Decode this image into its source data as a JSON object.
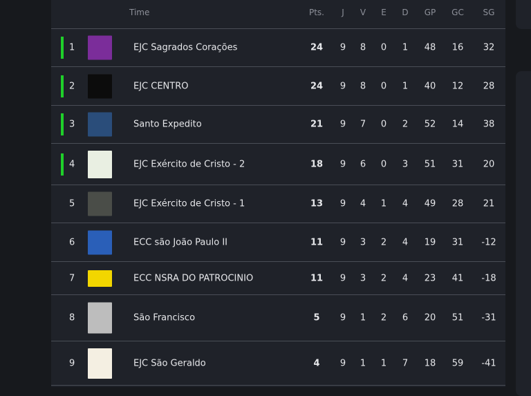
{
  "header": {
    "team": "Time",
    "cols": [
      "Pts.",
      "J",
      "V",
      "E",
      "D",
      "GP",
      "GC",
      "SG"
    ]
  },
  "colors": {
    "qualify": "#1fd02a"
  },
  "rows": [
    {
      "rank": "1",
      "name": "EJC Sagrados Corações",
      "pts": "24",
      "j": "9",
      "v": "8",
      "e": "0",
      "d": "1",
      "gp": "48",
      "gc": "16",
      "sg": "32",
      "q": true,
      "logo": "#7b2d9a"
    },
    {
      "rank": "2",
      "name": "EJC CENTRO",
      "pts": "24",
      "j": "9",
      "v": "8",
      "e": "0",
      "d": "1",
      "gp": "40",
      "gc": "12",
      "sg": "28",
      "q": true,
      "logo": "#0c0c0c"
    },
    {
      "rank": "3",
      "name": "Santo Expedito",
      "pts": "21",
      "j": "9",
      "v": "7",
      "e": "0",
      "d": "2",
      "gp": "52",
      "gc": "14",
      "sg": "38",
      "q": true,
      "logo": "#2a4d7a"
    },
    {
      "rank": "4",
      "name": "EJC Exército de Cristo - 2",
      "pts": "18",
      "j": "9",
      "v": "6",
      "e": "0",
      "d": "3",
      "gp": "51",
      "gc": "31",
      "sg": "20",
      "q": true,
      "logo": "#e9efe2"
    },
    {
      "rank": "5",
      "name": "EJC Exército de Cristo - 1",
      "pts": "13",
      "j": "9",
      "v": "4",
      "e": "1",
      "d": "4",
      "gp": "49",
      "gc": "28",
      "sg": "21",
      "q": false,
      "logo": "#4a4d48"
    },
    {
      "rank": "6",
      "name": "ECC são João Paulo II",
      "pts": "11",
      "j": "9",
      "v": "3",
      "e": "2",
      "d": "4",
      "gp": "19",
      "gc": "31",
      "sg": "-12",
      "q": false,
      "logo": "#2a5fb8"
    },
    {
      "rank": "7",
      "name": "ECC NSRA DO PATROCINIO",
      "pts": "11",
      "j": "9",
      "v": "3",
      "e": "2",
      "d": "4",
      "gp": "23",
      "gc": "41",
      "sg": "-18",
      "q": false,
      "logo": "#f2d600"
    },
    {
      "rank": "8",
      "name": "São Francisco",
      "pts": "5",
      "j": "9",
      "v": "1",
      "e": "2",
      "d": "6",
      "gp": "20",
      "gc": "51",
      "sg": "-31",
      "q": false,
      "logo": "#bdbdbd"
    },
    {
      "rank": "9",
      "name": "EJC São Geraldo",
      "pts": "4",
      "j": "9",
      "v": "1",
      "e": "1",
      "d": "7",
      "gp": "18",
      "gc": "59",
      "sg": "-41",
      "q": false,
      "logo": "#f4efe2"
    }
  ]
}
